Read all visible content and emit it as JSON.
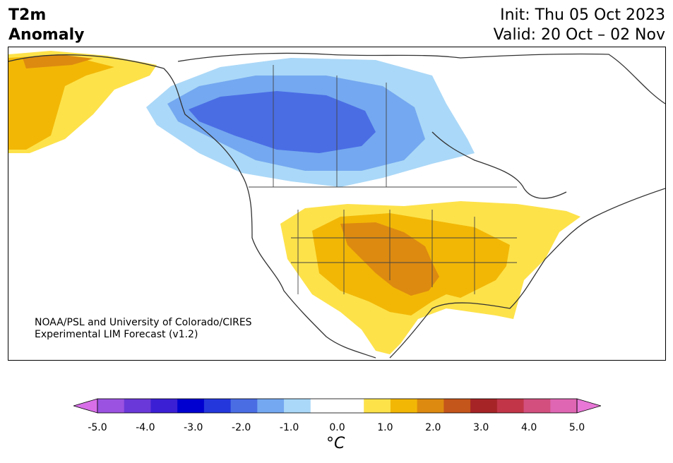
{
  "title": {
    "variable": "T2m",
    "variable_line2": "Anomaly",
    "init": "Init: Thu 05 Oct 2023",
    "valid": "Valid: 20 Oct – 02 Nov"
  },
  "credit": {
    "line1": "NOAA/PSL and University of Colorado/CIRES",
    "line2": "Experimental LIM Forecast (v1.2)"
  },
  "colorbar": {
    "unit": "°C",
    "tick_labels": [
      "-5.0",
      "-4.0",
      "-3.0",
      "-2.0",
      "-1.0",
      "0.0",
      "1.0",
      "2.0",
      "3.0",
      "4.0",
      "5.0"
    ],
    "colors": [
      "#d86fe8",
      "#9b52e0",
      "#6a38d8",
      "#3b1fd4",
      "#0000d0",
      "#2437dc",
      "#4a6de4",
      "#74a8f0",
      "#aad8f8",
      "#ffffff",
      "#ffffff",
      "#fde24a",
      "#f2b705",
      "#dd8a10",
      "#c4551b",
      "#a62426",
      "#c23548",
      "#d24f7e",
      "#df66b2",
      "#e877d8"
    ]
  },
  "map": {
    "region": "North America",
    "legend_colors": {
      "warm1": "#fde24a",
      "warm2": "#f2b705",
      "warm3": "#dd8a10",
      "cool1": "#aad8f8",
      "cool2": "#74a8f0",
      "cool3": "#4a6de4"
    }
  }
}
